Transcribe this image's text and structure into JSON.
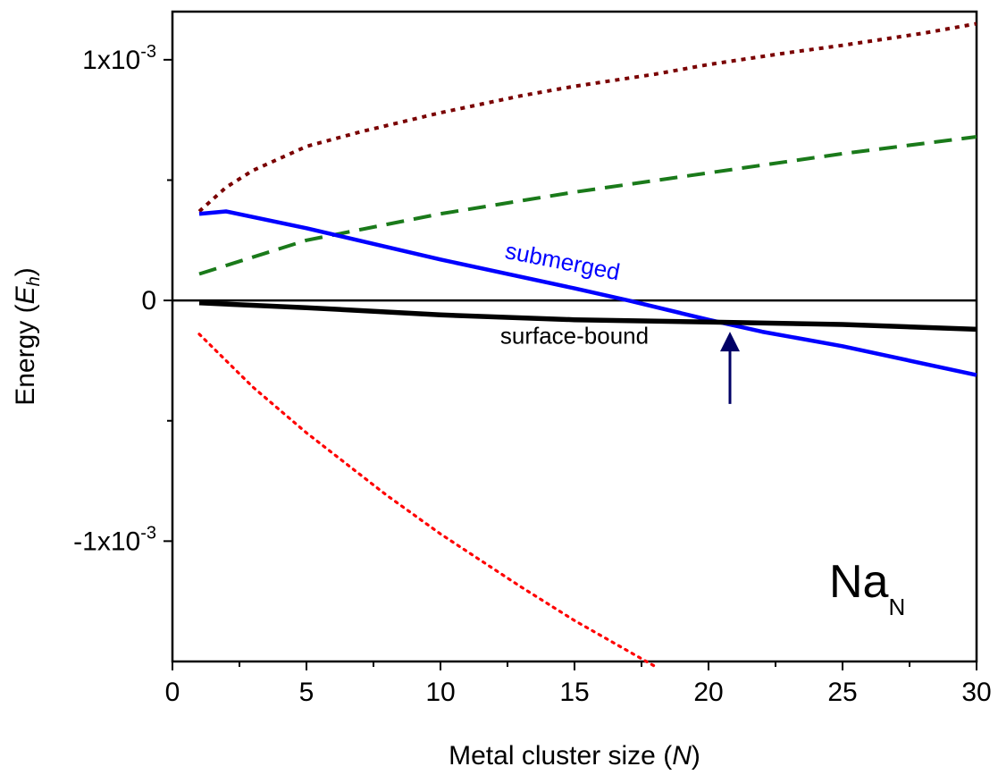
{
  "chart_data": {
    "type": "line",
    "xlabel": {
      "prefix": "Metal cluster size (",
      "var": "N",
      "suffix": ")"
    },
    "ylabel": {
      "prefix": "Energy (",
      "var": "E",
      "sub": "h",
      "suffix": ")"
    },
    "xlim": [
      0,
      30
    ],
    "ylim": [
      -0.0015,
      0.0012
    ],
    "x_ticks": [
      0,
      5,
      10,
      15,
      20,
      25,
      30
    ],
    "x_tick_labels": [
      "0",
      "5",
      "10",
      "15",
      "20",
      "25",
      "30"
    ],
    "y_ticks": [
      -0.001,
      0,
      0.001
    ],
    "y_tick_labels": [
      {
        "base": "-1x10",
        "exp": "-3"
      },
      {
        "base": "0",
        "exp": ""
      },
      {
        "base": "1x10",
        "exp": "-3"
      }
    ],
    "zero_line": true,
    "grid": false,
    "series": [
      {
        "style": "short-dash",
        "color": "#7a0000",
        "x": [
          1,
          2,
          3,
          5,
          7,
          10,
          13,
          15,
          18,
          20,
          23,
          25,
          28,
          30
        ],
        "y": [
          0.00037,
          0.00047,
          0.00054,
          0.00064,
          0.0007,
          0.00078,
          0.00085,
          0.00089,
          0.00094,
          0.00098,
          0.00103,
          0.00106,
          0.00111,
          0.00115
        ]
      },
      {
        "style": "long-dash",
        "color": "#1a7a1a",
        "x": [
          1,
          5,
          10,
          15,
          20,
          25,
          30
        ],
        "y": [
          0.00011,
          0.00025,
          0.00036,
          0.00045,
          0.00053,
          0.00061,
          0.00068
        ]
      },
      {
        "style": "solid",
        "color": "#0000ff",
        "x": [
          1,
          2,
          5,
          10,
          15,
          17,
          20,
          22,
          25,
          30
        ],
        "y": [
          0.00036,
          0.00037,
          0.0003,
          0.00017,
          5e-05,
          0.0,
          -8e-05,
          -0.00013,
          -0.00019,
          -0.00031
        ]
      },
      {
        "style": "solid-thick",
        "color": "#000000",
        "x": [
          1,
          5,
          10,
          15,
          20,
          25,
          30
        ],
        "y": [
          -1e-05,
          -3e-05,
          -6e-05,
          -8e-05,
          -9e-05,
          -0.0001,
          -0.00012
        ]
      },
      {
        "style": "dotted",
        "color": "#ff0000",
        "x": [
          1,
          3,
          5,
          8,
          10,
          13,
          15,
          18
        ],
        "y": [
          -0.00014,
          -0.00036,
          -0.00055,
          -0.00081,
          -0.00097,
          -0.00119,
          -0.00133,
          -0.00152
        ]
      }
    ],
    "annotations": [
      {
        "text": "submerged",
        "color": "#0000ff",
        "x": 14.5,
        "y": 0.00013,
        "rotate": 11
      },
      {
        "text": "surface-bound",
        "color": "#000000",
        "x": 15.0,
        "y": -0.00018,
        "rotate": 0
      }
    ],
    "arrow": {
      "x": 20.8,
      "y_from": -0.00043,
      "y_to": -0.00013,
      "color": "#000066"
    },
    "system_label": {
      "base": "Na",
      "sub": "N"
    }
  }
}
